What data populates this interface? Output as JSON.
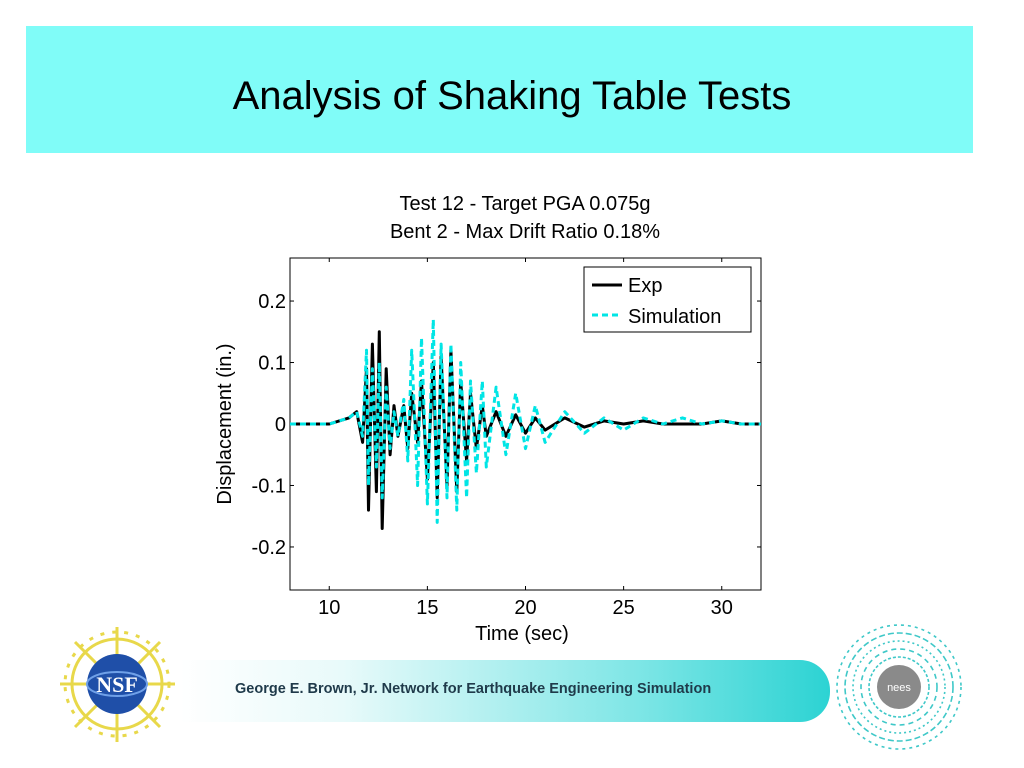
{
  "slide": {
    "title": "Analysis of Shaking Table Tests",
    "footer": "George E. Brown, Jr. Network for Earthquake Engineering Simulation",
    "logos": {
      "left": "NSF",
      "right": "nees"
    },
    "colors": {
      "title_band": "#80fcf8",
      "footer_accent": "#2cd3d3"
    }
  },
  "chart_data": {
    "type": "line",
    "title_line1": "Test 12 - Target PGA 0.075g",
    "title_line2": "Bent 2 - Max Drift Ratio 0.18%",
    "xlabel": "Time (sec)",
    "ylabel": "Displacement (in.)",
    "xlim": [
      8,
      32
    ],
    "ylim": [
      -0.27,
      0.27
    ],
    "xticks": [
      10,
      15,
      20,
      25,
      30
    ],
    "yticks": [
      -0.2,
      -0.1,
      0,
      0.1,
      0.2
    ],
    "ytick_labels": [
      "-0.2",
      "-0.1",
      "0",
      "0.1",
      "0.2"
    ],
    "legend_position": "top-right",
    "grid": false,
    "series": [
      {
        "name": "Exp",
        "style": "solid",
        "color": "#000000",
        "x": [
          8,
          9,
          10,
          11,
          11.4,
          11.7,
          11.9,
          12.0,
          12.2,
          12.4,
          12.55,
          12.7,
          12.9,
          13.1,
          13.3,
          13.5,
          13.8,
          14.0,
          14.2,
          14.5,
          14.7,
          15.0,
          15.3,
          15.5,
          15.7,
          16.0,
          16.2,
          16.5,
          16.7,
          17.0,
          17.2,
          17.5,
          17.8,
          18.0,
          18.5,
          19.0,
          19.5,
          20.0,
          20.5,
          21.0,
          22,
          23,
          24,
          25,
          26,
          27,
          28,
          29,
          30,
          31,
          32
        ],
        "y": [
          0.0,
          0.0,
          0.0,
          0.01,
          0.02,
          -0.03,
          0.09,
          -0.14,
          0.13,
          -0.11,
          0.15,
          -0.17,
          0.09,
          -0.05,
          0.03,
          -0.02,
          0.03,
          -0.04,
          0.05,
          -0.03,
          0.07,
          -0.09,
          0.1,
          -0.12,
          0.11,
          -0.1,
          0.12,
          -0.11,
          0.07,
          -0.06,
          0.05,
          -0.04,
          0.03,
          -0.02,
          0.02,
          -0.02,
          0.015,
          -0.015,
          0.01,
          -0.01,
          0.01,
          -0.005,
          0.005,
          0.0,
          0.005,
          0.0,
          0.0,
          0.0,
          0.005,
          0.0,
          0.0
        ]
      },
      {
        "name": "Simulation",
        "style": "dashed",
        "color": "#00e5e5",
        "x": [
          8,
          9,
          10,
          11,
          11.4,
          11.7,
          11.9,
          12.0,
          12.2,
          12.4,
          12.55,
          12.7,
          12.9,
          13.1,
          13.3,
          13.5,
          13.8,
          14.0,
          14.2,
          14.5,
          14.7,
          15.0,
          15.3,
          15.5,
          15.7,
          16.0,
          16.2,
          16.5,
          16.7,
          17.0,
          17.2,
          17.5,
          17.8,
          18.0,
          18.5,
          19.0,
          19.5,
          20.0,
          20.5,
          21.0,
          22,
          23,
          24,
          25,
          26,
          27,
          28,
          29,
          30,
          31,
          32
        ],
        "y": [
          0.0,
          0.0,
          0.0,
          0.01,
          0.02,
          -0.02,
          0.12,
          -0.1,
          0.09,
          -0.07,
          0.1,
          -0.12,
          0.06,
          -0.04,
          0.02,
          -0.02,
          0.04,
          -0.06,
          0.12,
          -0.1,
          0.14,
          -0.13,
          0.17,
          -0.16,
          0.13,
          -0.12,
          0.13,
          -0.14,
          0.1,
          -0.12,
          0.07,
          -0.08,
          0.07,
          -0.07,
          0.06,
          -0.05,
          0.05,
          -0.04,
          0.03,
          -0.03,
          0.02,
          -0.015,
          0.01,
          -0.01,
          0.01,
          0.0,
          0.01,
          0.0,
          0.005,
          0.0,
          0.0
        ]
      }
    ]
  }
}
